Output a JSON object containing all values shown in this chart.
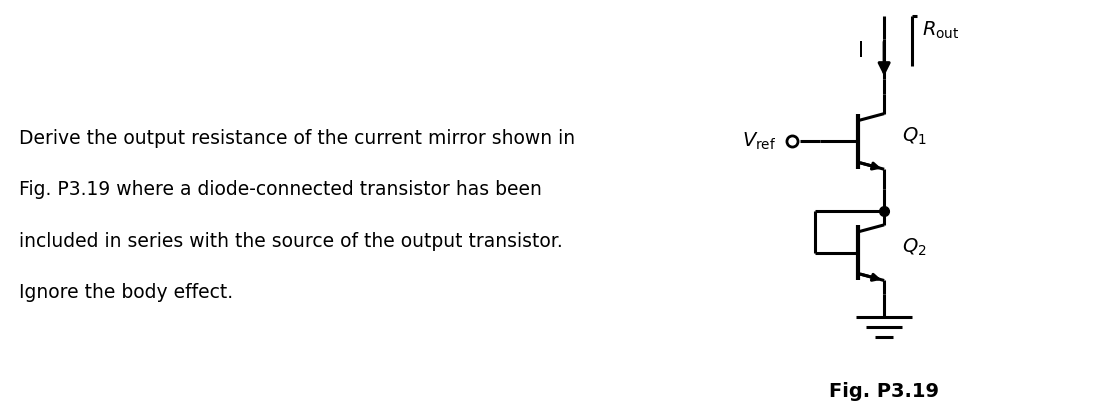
{
  "text_lines": [
    "Derive the output resistance of the current mirror shown in",
    "Fig. P3.19 where a diode-connected transistor has been",
    "included in series with the source of the output transistor.",
    "Ignore the body effect."
  ],
  "text_fontsize": 13.5,
  "fig_label": "Fig. P3.19",
  "fig_label_fontsize": 14,
  "background_color": "#ffffff",
  "line_color": "#000000"
}
